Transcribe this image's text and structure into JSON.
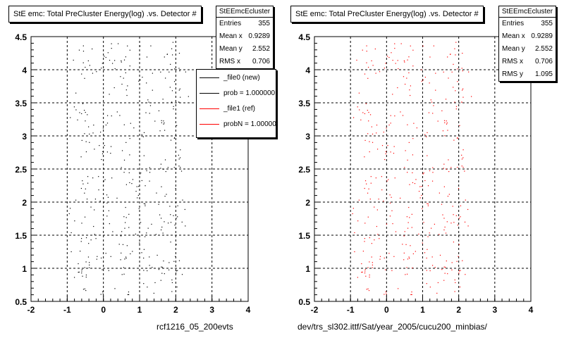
{
  "colors": {
    "ref": "#ff0000",
    "new": "#000000"
  },
  "panels": [
    {
      "title": "StE emc: Total PreCluster Energy(log) .vs. Detector #",
      "stats": {
        "name": "StEEmcEcluster",
        "rows": [
          {
            "label": "Entries",
            "value": "355"
          },
          {
            "label": "Mean x",
            "value": "0.9289"
          },
          {
            "label": "Mean y",
            "value": "2.552"
          },
          {
            "label": "RMS x",
            "value": "0.706"
          }
        ]
      },
      "legend": [
        {
          "label": "_file0 (new)",
          "color": "#000000"
        },
        {
          "label": "prob = 1.000000",
          "color": "#000000"
        },
        {
          "label": "_file1 (ref)",
          "color": "#ff0000"
        },
        {
          "label": "probN = 1.000000",
          "color": "#ff0000"
        }
      ],
      "path": "rcf1216_05_200evts"
    },
    {
      "title": "StE emc: Total PreCluster Energy(log) .vs. Detector #",
      "stats": {
        "name": "StEEmcEcluster",
        "rows": [
          {
            "label": "Entries",
            "value": "355"
          },
          {
            "label": "Mean x",
            "value": "0.9289"
          },
          {
            "label": "Mean y",
            "value": "2.552"
          },
          {
            "label": "RMS x",
            "value": "0.706"
          },
          {
            "label": "RMS y",
            "value": "1.095"
          }
        ]
      },
      "path": "dev/trs_sl302.ittf/Sat/year_2005/cucu200_minbias/"
    }
  ],
  "chart_data": [
    {
      "type": "scatter",
      "title": "StE emc: Total PreCluster Energy(log) .vs. Detector #",
      "xlim": [
        -2,
        4
      ],
      "ylim": [
        0.5,
        4.5
      ],
      "xticks": [
        "-2",
        "-1",
        "0",
        "1",
        "2",
        "3",
        "4"
      ],
      "yticks": [
        "0.5",
        "1",
        "1.5",
        "2",
        "2.5",
        "3",
        "3.5",
        "4",
        "4.5"
      ],
      "grid": true,
      "series": [
        {
          "name": "_file0 (new)",
          "color": "#000000",
          "marker_count": 355
        }
      ],
      "stats": {
        "entries": 355,
        "mean_x": 0.9289,
        "mean_y": 2.552,
        "rms_x": 0.706
      }
    },
    {
      "type": "scatter",
      "title": "StE emc: Total PreCluster Energy(log) .vs. Detector #",
      "xlim": [
        -2,
        4
      ],
      "ylim": [
        0.5,
        4.5
      ],
      "xticks": [
        "-2",
        "-1",
        "0",
        "1",
        "2",
        "3",
        "4"
      ],
      "yticks": [
        "0.5",
        "1",
        "1.5",
        "2",
        "2.5",
        "3",
        "3.5",
        "4",
        "4.5"
      ],
      "grid": true,
      "series": [
        {
          "name": "_file1 (ref)",
          "color": "#ff0000",
          "marker_count": 355
        }
      ],
      "stats": {
        "entries": 355,
        "mean_x": 0.9289,
        "mean_y": 2.552,
        "rms_x": 0.706,
        "rms_y": 1.095
      }
    }
  ]
}
